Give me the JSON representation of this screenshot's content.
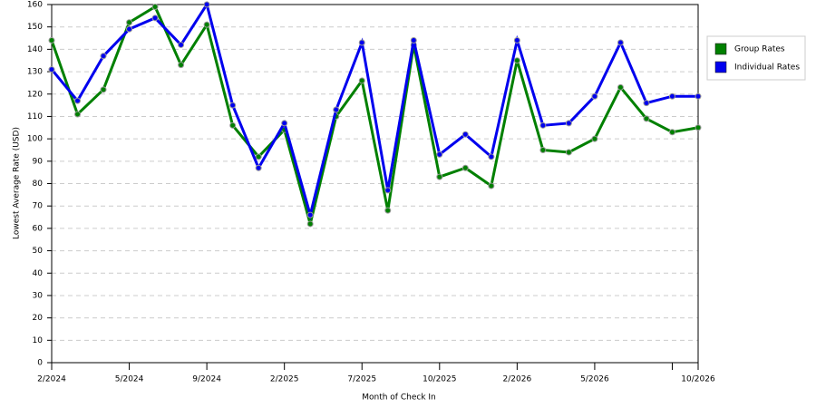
{
  "chart_data": {
    "type": "line",
    "x_label": "Month of Check In",
    "y_label": "Lowest Average Rate (USD)",
    "categories": [
      "2/2024",
      null,
      null,
      "5/2024",
      null,
      null,
      "9/2024",
      null,
      null,
      "2/2025",
      null,
      null,
      "7/2025",
      null,
      null,
      "10/2025",
      null,
      null,
      "2/2026",
      null,
      null,
      "5/2026",
      null,
      null,
      null,
      "10/2026"
    ],
    "series": [
      {
        "name": "Group Rates",
        "color": "#008000",
        "values": [
          144,
          111,
          122,
          152,
          159,
          133,
          151,
          106,
          92,
          104,
          62,
          110,
          126,
          68,
          142,
          83,
          87,
          79,
          135,
          95,
          94,
          100,
          123,
          109,
          103,
          105
        ]
      },
      {
        "name": "Individual Rates",
        "color": "#0000ee",
        "values": [
          131,
          117,
          137,
          149,
          154,
          142,
          160,
          115,
          87,
          107,
          66,
          113,
          143,
          77,
          144,
          93,
          102,
          92,
          144,
          106,
          107,
          119,
          143,
          116,
          119,
          119
        ]
      }
    ],
    "ylim": [
      0,
      160
    ],
    "yticks": [
      0,
      10,
      20,
      30,
      40,
      50,
      60,
      70,
      80,
      90,
      100,
      110,
      120,
      130,
      140,
      150,
      160
    ],
    "grid": true,
    "legend": "right"
  }
}
